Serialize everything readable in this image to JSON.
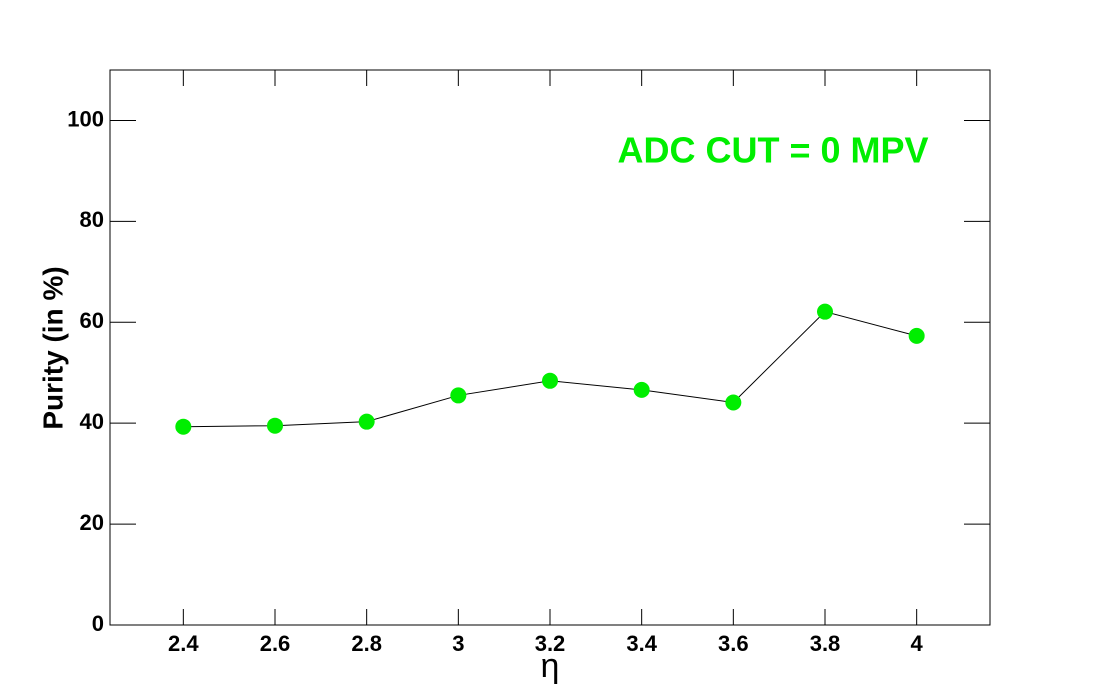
{
  "chart_data": {
    "type": "line",
    "annotation": "ADC CUT = 0 MPV",
    "annotation_color": "#00ee00",
    "xlabel": "η",
    "ylabel": "Purity (in %)",
    "x": [
      2.4,
      2.6,
      2.8,
      3.0,
      3.2,
      3.4,
      3.6,
      3.8,
      4.0
    ],
    "series": [
      {
        "color": "#00ee00",
        "line_color": "#000000",
        "values": [
          39.3,
          39.5,
          40.3,
          45.5,
          48.4,
          46.6,
          44.1,
          62.1,
          57.3
        ]
      }
    ],
    "xlim": [
      2.24,
      4.16
    ],
    "ylim": [
      0,
      110
    ],
    "xticks": [
      2.4,
      2.6,
      2.8,
      3,
      3.2,
      3.4,
      3.6,
      3.8,
      4
    ],
    "yticks": [
      0,
      20,
      40,
      60,
      80,
      100
    ],
    "grid": false
  }
}
